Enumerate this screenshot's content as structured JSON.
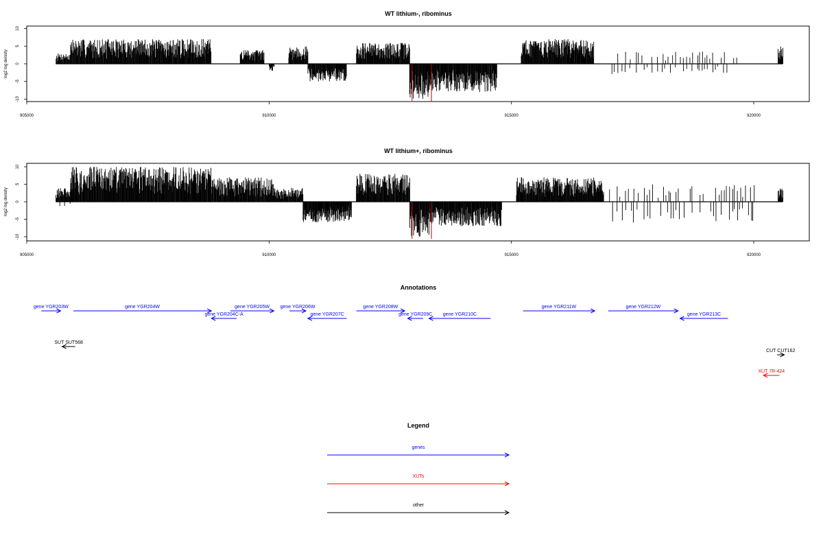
{
  "colors": {
    "gene": "#0000ff",
    "xut": "#ff0000",
    "other": "#000000",
    "highlight": "#cc0000"
  },
  "chart_data": [
    {
      "type": "bar",
      "title": "WT lithium-, ribominus",
      "ylabel": "log2 log density",
      "xlim": [
        905000,
        921200
      ],
      "ylim": [
        -11,
        11
      ],
      "x_ticks": [
        "905000",
        "910000",
        "915000",
        "920000"
      ],
      "y_ticks": [
        "-10",
        "-5",
        "0",
        "5",
        "10"
      ],
      "segments": [
        {
          "from": 905600,
          "to": 905900,
          "sign": 1,
          "max": 3
        },
        {
          "from": 905900,
          "to": 908800,
          "sign": 1,
          "max": 7
        },
        {
          "from": 909400,
          "to": 909900,
          "sign": 1,
          "max": 4
        },
        {
          "from": 910000,
          "to": 910100,
          "sign": -1,
          "max": 2
        },
        {
          "from": 910400,
          "to": 910800,
          "sign": 1,
          "max": 5
        },
        {
          "from": 910800,
          "to": 911600,
          "sign": -1,
          "max": 5
        },
        {
          "from": 911800,
          "to": 912900,
          "sign": 1,
          "max": 6
        },
        {
          "from": 912900,
          "to": 913300,
          "sign": -1,
          "max": 10
        },
        {
          "from": 913300,
          "to": 914700,
          "sign": -1,
          "max": 8
        },
        {
          "from": 915200,
          "to": 916700,
          "sign": 1,
          "max": 7
        },
        {
          "from": 917000,
          "to": 919800,
          "sign": 1,
          "max": 3.5,
          "sparse": true
        },
        {
          "from": 917000,
          "to": 919500,
          "sign": -1,
          "max": 3,
          "sparse": true
        },
        {
          "from": 920500,
          "to": 920600,
          "sign": 1,
          "max": 5
        }
      ],
      "highlights": [
        {
          "x": 912950,
          "y": -10.5
        },
        {
          "x": 913350,
          "y": -10.8
        }
      ]
    },
    {
      "type": "bar",
      "title": "WT lithium+, ribominus",
      "ylabel": "log2 log density",
      "xlim": [
        905000,
        921200
      ],
      "ylim": [
        -11,
        11
      ],
      "x_ticks": [
        "905000",
        "910000",
        "915000",
        "920000"
      ],
      "y_ticks": [
        "-10",
        "-5",
        "0",
        "5",
        "10"
      ],
      "segments": [
        {
          "from": 905600,
          "to": 905900,
          "sign": 1,
          "max": 4
        },
        {
          "from": 905600,
          "to": 905900,
          "sign": -1,
          "max": 1.5,
          "sparse": true
        },
        {
          "from": 905900,
          "to": 908800,
          "sign": 1,
          "max": 10
        },
        {
          "from": 908800,
          "to": 910100,
          "sign": 1,
          "max": 7
        },
        {
          "from": 910100,
          "to": 910700,
          "sign": 1,
          "max": 4
        },
        {
          "from": 910700,
          "to": 911700,
          "sign": -1,
          "max": 6
        },
        {
          "from": 911800,
          "to": 912900,
          "sign": 1,
          "max": 8
        },
        {
          "from": 912900,
          "to": 913300,
          "sign": -1,
          "max": 10
        },
        {
          "from": 913300,
          "to": 914800,
          "sign": -1,
          "max": 7
        },
        {
          "from": 915100,
          "to": 916900,
          "sign": 1,
          "max": 7
        },
        {
          "from": 916900,
          "to": 920000,
          "sign": 1,
          "max": 5,
          "sparse": true
        },
        {
          "from": 916900,
          "to": 920000,
          "sign": -1,
          "max": 6,
          "sparse": true
        },
        {
          "from": 920500,
          "to": 920600,
          "sign": 1,
          "max": 4
        }
      ],
      "highlights": [
        {
          "x": 912950,
          "y": -10.6
        },
        {
          "x": 913350,
          "y": -10.6
        }
      ]
    }
  ],
  "annotations": {
    "title": "Annotations",
    "items": [
      {
        "label": "gene YGR203W",
        "kind": "gene",
        "start": 905300,
        "end": 905700,
        "strand": "+",
        "row": 0
      },
      {
        "label": "gene YGR204W",
        "kind": "gene",
        "start": 905960,
        "end": 908810,
        "strand": "+",
        "row": 0
      },
      {
        "label": "gene YGR204C-A",
        "kind": "gene",
        "start": 908810,
        "end": 909330,
        "strand": "-",
        "row": 1
      },
      {
        "label": "gene YGR205W",
        "kind": "gene",
        "start": 909200,
        "end": 910100,
        "strand": "+",
        "row": 0
      },
      {
        "label": "gene YGR206W",
        "kind": "gene",
        "start": 910420,
        "end": 910760,
        "strand": "+",
        "row": 0
      },
      {
        "label": "gene YGR207C",
        "kind": "gene",
        "start": 910800,
        "end": 911600,
        "strand": "-",
        "row": 1
      },
      {
        "label": "gene YGR208W",
        "kind": "gene",
        "start": 911800,
        "end": 912800,
        "strand": "+",
        "row": 0
      },
      {
        "label": "gene YGR209C",
        "kind": "gene",
        "start": 912860,
        "end": 913180,
        "strand": "-",
        "row": 1
      },
      {
        "label": "gene YGR210C",
        "kind": "gene",
        "start": 913300,
        "end": 914570,
        "strand": "-",
        "row": 1
      },
      {
        "label": "gene YGR211W",
        "kind": "gene",
        "start": 915240,
        "end": 916720,
        "strand": "+",
        "row": 0
      },
      {
        "label": "gene YGR212W",
        "kind": "gene",
        "start": 917000,
        "end": 918440,
        "strand": "+",
        "row": 0
      },
      {
        "label": "gene YGR213C",
        "kind": "gene",
        "start": 918480,
        "end": 919470,
        "strand": "-",
        "row": 1
      },
      {
        "label": "SUT SUT568",
        "kind": "other",
        "start": 905730,
        "end": 906000,
        "strand": "-",
        "row": 2
      },
      {
        "label": "CUT CUT162",
        "kind": "other",
        "start": 920480,
        "end": 920630,
        "strand": "+",
        "row": 3
      },
      {
        "label": "XUT 7R-424",
        "kind": "xut",
        "start": 920200,
        "end": 920530,
        "strand": "-",
        "row": 4
      }
    ]
  },
  "legend": {
    "title": "Legend",
    "items": [
      {
        "label": "genes",
        "kind": "gene"
      },
      {
        "label": "XUTs",
        "kind": "xut"
      },
      {
        "label": "other",
        "kind": "other"
      }
    ]
  }
}
